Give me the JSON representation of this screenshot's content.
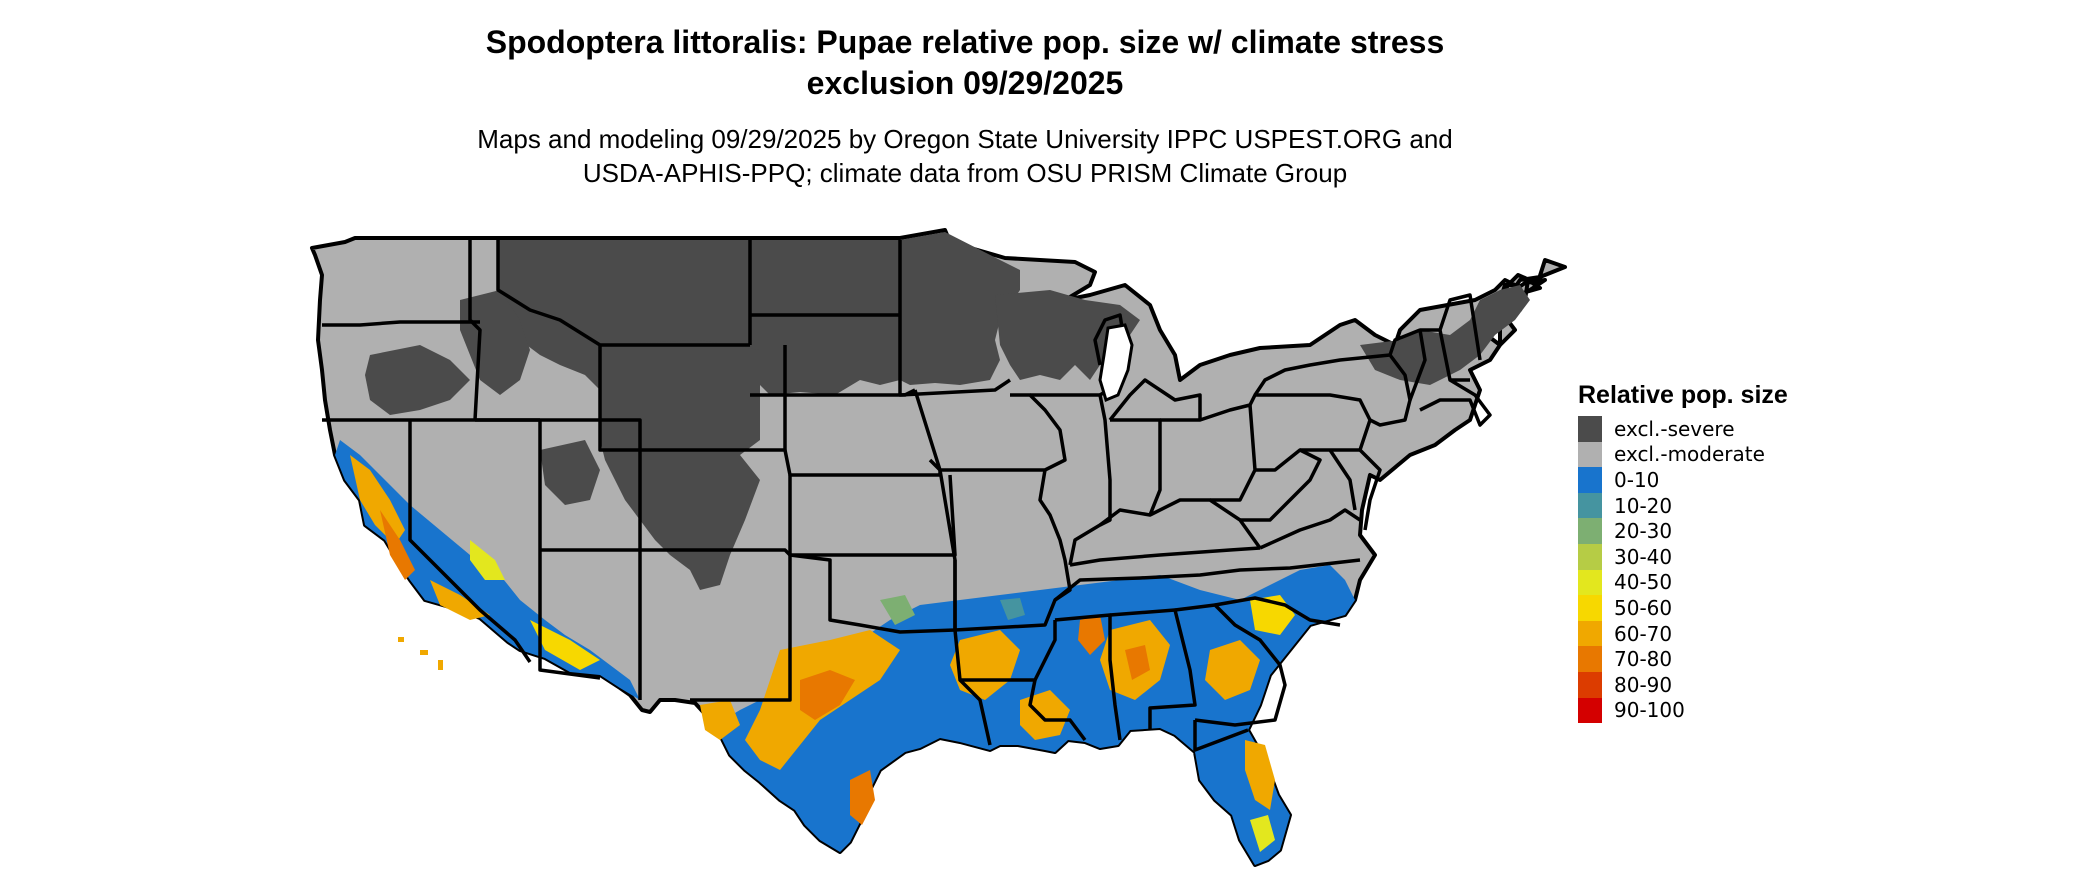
{
  "title_line1": "Spodoptera littoralis: Pupae relative pop. size w/ climate stress",
  "title_line2": "exclusion 09/29/2025",
  "subtitle_line1": "Maps and modeling 09/29/2025 by Oregon State University IPPC USPEST.ORG and",
  "subtitle_line2": "USDA-APHIS-PPQ; climate data from OSU PRISM Climate Group",
  "legend": {
    "title": "Relative pop. size",
    "items": [
      {
        "label": "excl.-severe",
        "color": "#4b4b4b"
      },
      {
        "label": "excl.-moderate",
        "color": "#b0b0b0"
      },
      {
        "label": "0-10",
        "color": "#1874cd"
      },
      {
        "label": "10-20",
        "color": "#4594a0"
      },
      {
        "label": "20-30",
        "color": "#7daf72"
      },
      {
        "label": "30-40",
        "color": "#b6cc45"
      },
      {
        "label": "40-50",
        "color": "#e3e71e"
      },
      {
        "label": "50-60",
        "color": "#f7d800"
      },
      {
        "label": "60-70",
        "color": "#f0a800"
      },
      {
        "label": "70-80",
        "color": "#e87800"
      },
      {
        "label": "80-90",
        "color": "#dc3c00"
      },
      {
        "label": "90-100",
        "color": "#d40000"
      }
    ]
  }
}
